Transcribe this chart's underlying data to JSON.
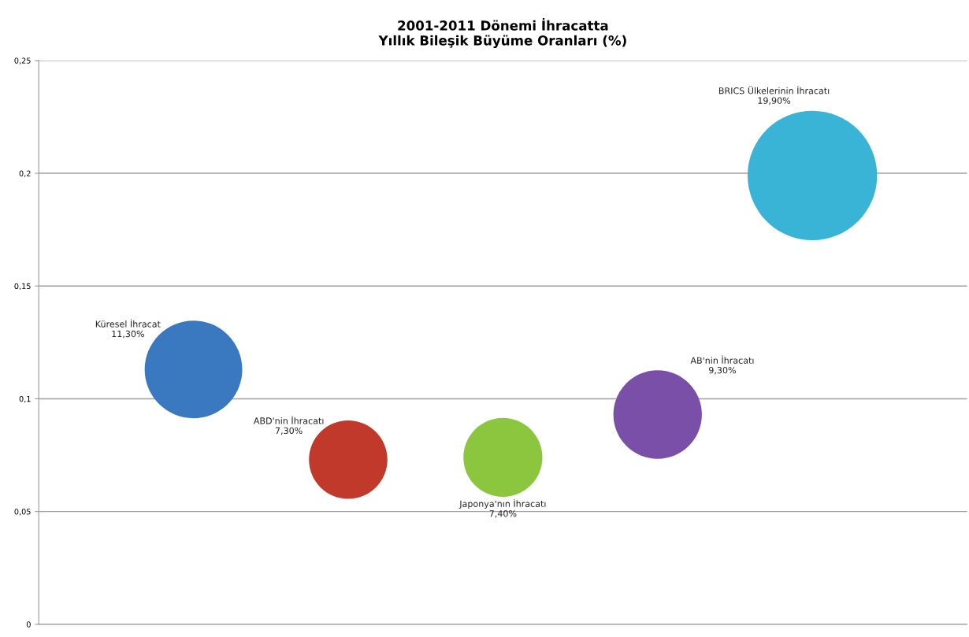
{
  "chart_data": {
    "type": "bubble",
    "title": "2001-2011 Dönemi İhracatta\nYıllık Bileşik Büyüme Oranları (%)",
    "categories": [
      null,
      null,
      null,
      null,
      null
    ],
    "series": [
      {
        "name": "Küresel İhracat",
        "color": "#3a78c0",
        "values": [
          0.113,
          null,
          null,
          null,
          null
        ],
        "sizes": [
          0.568,
          null,
          null,
          null,
          null
        ],
        "value_labels": [
          "11,30%",
          null,
          null,
          null,
          null
        ]
      },
      {
        "name": "ABD'nin İhracatı",
        "color": "#c0392b",
        "values": [
          null,
          0.073,
          null,
          null,
          null
        ],
        "sizes": [
          null,
          0.367,
          null,
          null,
          null
        ],
        "value_labels": [
          null,
          "7,30%",
          null,
          null,
          null
        ]
      },
      {
        "name": "Japonya'nın İhracatı",
        "color": "#8cc63f",
        "values": [
          null,
          null,
          0.074,
          null,
          null
        ],
        "sizes": [
          null,
          null,
          0.372,
          null,
          null
        ],
        "value_labels": [
          null,
          null,
          "7,40%",
          null,
          null
        ]
      },
      {
        "name": "AB'nin İhracatı",
        "color": "#7a4fa8",
        "values": [
          null,
          null,
          null,
          0.093,
          null
        ],
        "sizes": [
          null,
          null,
          null,
          0.467,
          null
        ],
        "value_labels": [
          null,
          null,
          null,
          "9,30%",
          null
        ]
      },
      {
        "name": "BRICS Ülkelerinin İhracatı",
        "color": "#3ab4d6",
        "values": [
          null,
          null,
          null,
          null,
          0.199
        ],
        "sizes": [
          null,
          null,
          null,
          null,
          1
        ],
        "value_labels": [
          null,
          null,
          null,
          null,
          "19,90%"
        ]
      }
    ],
    "ylim": [
      0,
      0.25
    ],
    "yticks": [
      {
        "value": 0,
        "label": "0"
      },
      {
        "value": 0.05,
        "label": "0,05"
      },
      {
        "value": 0.1,
        "label": "0,1"
      },
      {
        "value": 0.15,
        "label": "0,15"
      },
      {
        "value": 0.2,
        "label": "0,2"
      },
      {
        "value": 0.25,
        "label": "0,25"
      }
    ],
    "grid": "y",
    "legend": false,
    "tick_labels": "y"
  }
}
